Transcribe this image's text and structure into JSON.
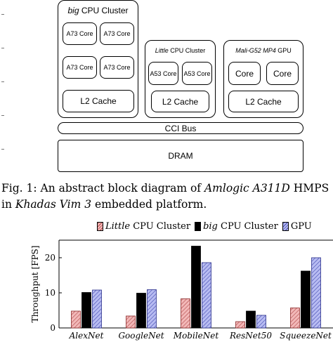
{
  "diagram": {
    "big_cluster": {
      "title_italic": "big",
      "title_rest": " CPU Cluster",
      "cores": [
        "A73 Core",
        "A73 Core",
        "A73 Core",
        "A73 Core"
      ],
      "cache": "L2 Cache"
    },
    "little_cluster": {
      "title_italic": "Little",
      "title_rest": " CPU Cluster",
      "cores": [
        "A53 Core",
        "A53 Core"
      ],
      "cache": "L2 Cache"
    },
    "gpu_cluster": {
      "title_italic": "Mali-G52 MP4",
      "title_rest": " GPU",
      "cores": [
        "Core",
        "Core"
      ],
      "cache": "L2 Cache"
    },
    "bus": "CCI Bus",
    "dram": "DRAM"
  },
  "caption": {
    "part1": "Fig. 1: An abstract block diagram of ",
    "italic1": "Amlogic A311D",
    "part2": " HMPS",
    "part3": "in ",
    "italic2": "Khadas Vim 3",
    "part4": " embedded platform."
  },
  "chart_data": {
    "type": "bar",
    "ylabel": "Throughput [FPS]",
    "ylim": [
      0,
      25
    ],
    "yticks": [
      0,
      10,
      20
    ],
    "categories": [
      "AlexNet",
      "GoogleNet",
      "MobileNet",
      "ResNet50",
      "SqueezeNet"
    ],
    "series": [
      {
        "name_italic": "Little",
        "name_rest": " CPU Cluster",
        "values": [
          4.8,
          3.4,
          8.3,
          1.8,
          5.7
        ],
        "fill": "#f2b8b8",
        "pattern": "hatch"
      },
      {
        "name_italic": "big",
        "name_rest": " CPU Cluster",
        "values": [
          10.1,
          9.9,
          23.3,
          4.8,
          16.2
        ],
        "fill": "#000000",
        "pattern": "solid"
      },
      {
        "name_italic": "",
        "name_rest": "GPU",
        "values": [
          10.8,
          10.9,
          18.6,
          3.6,
          20.0
        ],
        "fill": "#b8bcf2",
        "pattern": "hatch"
      }
    ],
    "legend_position": "top"
  }
}
